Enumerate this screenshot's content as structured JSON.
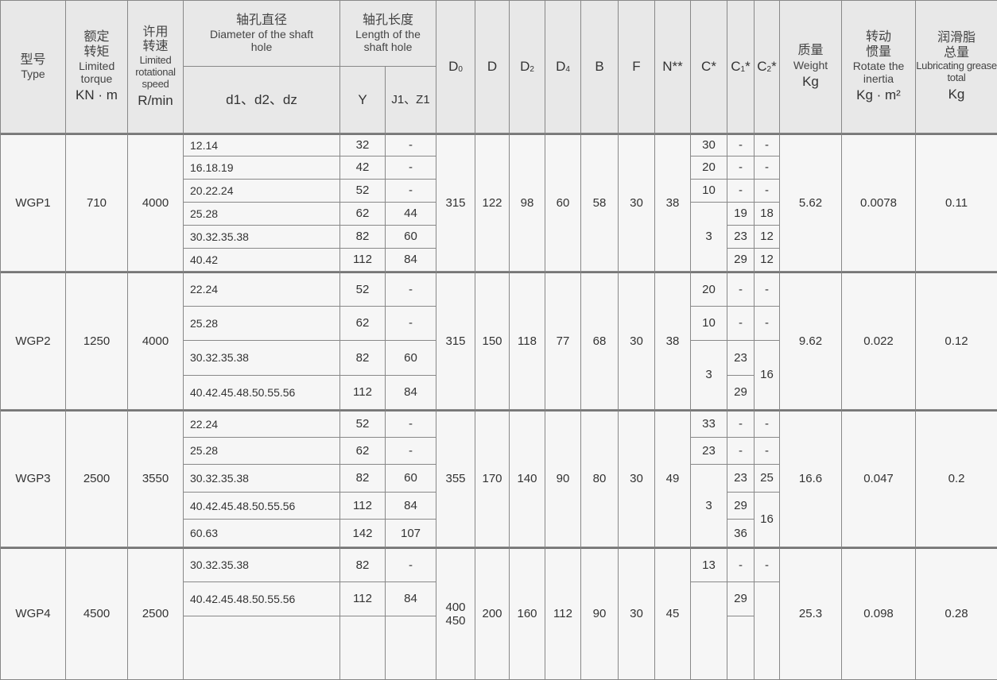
{
  "header": {
    "type": {
      "zh": "型号",
      "en": "Type"
    },
    "torque": {
      "zh": "额定转矩",
      "en": "Limited torque",
      "unit": "KN · m"
    },
    "speed": {
      "zh": "许用转速",
      "en": "Limited rotational speed",
      "unit": "R/min"
    },
    "diameter": {
      "zh": "轴孔直径",
      "en": "Diameter of the shaft hole",
      "sub": "d1、d2、dz"
    },
    "length": {
      "zh": "轴孔长度",
      "en": "Length of the shaft hole",
      "y": "Y",
      "jz": "J1、Z1"
    },
    "dims": [
      {
        "main": "D",
        "sub": "0"
      },
      {
        "main": "D",
        "sub": ""
      },
      {
        "main": "D",
        "sub": "2"
      },
      {
        "main": "D",
        "sub": "4"
      },
      {
        "main": "B",
        "sub": ""
      },
      {
        "main": "F",
        "sub": ""
      },
      {
        "main": "N**",
        "sub": ""
      },
      {
        "main": "C*",
        "sub": ""
      },
      {
        "main": "C",
        "sub": "1",
        "suffix": "*"
      },
      {
        "main": "C",
        "sub": "2",
        "suffix": "*"
      }
    ],
    "weight": {
      "zh": "质量",
      "en": "Weight",
      "unit": "Kg"
    },
    "inertia": {
      "zh": "转动惯量",
      "en": "Rotate the inertia",
      "unit": "Kg · m²"
    },
    "grease": {
      "zh": "润滑脂总量",
      "en": "Lubricating grease total",
      "unit": "Kg"
    }
  },
  "groups": [
    {
      "type": "WGP1",
      "torque": "710",
      "speed": "4000",
      "bores": [
        [
          "12.14",
          "32",
          "-"
        ],
        [
          "16.18.19",
          "42",
          "-"
        ],
        [
          "20.22.24",
          "52",
          "-"
        ],
        [
          "25.28",
          "62",
          "44"
        ],
        [
          "30.32.35.38",
          "82",
          "60"
        ],
        [
          "40.42",
          "112",
          "84"
        ]
      ],
      "dims": [
        "315",
        "122",
        "98",
        "60",
        "58",
        "30",
        "38"
      ],
      "c": [
        "30",
        "20",
        "10",
        "3",
        null,
        null
      ],
      "c1": [
        "-",
        "-",
        "-",
        "19",
        "23",
        "29"
      ],
      "c2": [
        "-",
        "-",
        "-",
        "18",
        "12",
        "12"
      ],
      "weight": "5.62",
      "inertia": "0.0078",
      "grease": "0.11"
    },
    {
      "type": "WGP2",
      "torque": "1250",
      "speed": "4000",
      "bores": [
        [
          "22.24",
          "52",
          "-"
        ],
        [
          "25.28",
          "62",
          "-"
        ],
        [
          "30.32.35.38",
          "82",
          "60"
        ],
        [
          "40.42.45.48.50.55.56",
          "112",
          "84"
        ]
      ],
      "dims": [
        "315",
        "150",
        "118",
        "77",
        "68",
        "30",
        "38"
      ],
      "c": [
        "20",
        "10",
        "3",
        null
      ],
      "c1": [
        "-",
        "-",
        "23",
        "29"
      ],
      "c2": [
        "-",
        "-",
        "16",
        null
      ],
      "weight": "9.62",
      "inertia": "0.022",
      "grease": "0.12"
    },
    {
      "type": "WGP3",
      "torque": "2500",
      "speed": "3550",
      "bores": [
        [
          "22.24",
          "52",
          "-"
        ],
        [
          "25.28",
          "62",
          "-"
        ],
        [
          "30.32.35.38",
          "82",
          "60"
        ],
        [
          "40.42.45.48.50.55.56",
          "112",
          "84"
        ],
        [
          "60.63",
          "142",
          "107"
        ]
      ],
      "dims": [
        "355",
        "170",
        "140",
        "90",
        "80",
        "30",
        "49"
      ],
      "c": [
        "33",
        "23",
        "3",
        null,
        null
      ],
      "c1": [
        "-",
        "-",
        "23",
        "29",
        "36"
      ],
      "c2": [
        "-",
        "-",
        "25",
        "16",
        null
      ],
      "weight": "16.6",
      "inertia": "0.047",
      "grease": "0.2"
    },
    {
      "type": "WGP4",
      "torque": "4500",
      "speed": "2500",
      "bores": [
        [
          "30.32.35.38",
          "82",
          "-"
        ],
        [
          "40.42.45.48.50.55.56",
          "112",
          "84"
        ],
        [
          "",
          "",
          ""
        ]
      ],
      "dims": [
        "400\n450",
        "200",
        "160",
        "112",
        "90",
        "30",
        "45"
      ],
      "c": [
        "13",
        "",
        null
      ],
      "c1": [
        "-",
        "29",
        ""
      ],
      "c2": [
        "-",
        "",
        null
      ],
      "weight": "25.3",
      "inertia": "0.098",
      "grease": "0.28"
    }
  ]
}
